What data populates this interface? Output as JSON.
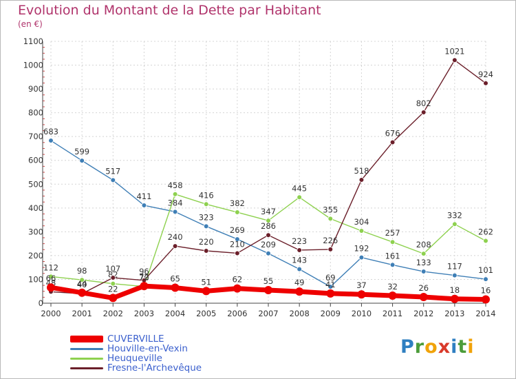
{
  "title": "Evolution du Montant de la Dette par Habitant",
  "unit": "(en €)",
  "logo": {
    "letters": [
      "P",
      "r",
      "o",
      "x",
      "i",
      "t",
      "i"
    ],
    "colors": [
      "#2f7fc1",
      "#4b9c3a",
      "#f0a30a",
      "#d93a2b",
      "#2f7fc1",
      "#4b9c3a",
      "#f0a30a"
    ]
  },
  "chart_data": {
    "type": "line",
    "x": [
      "2000",
      "2001",
      "2002",
      "2003",
      "2004",
      "2005",
      "2006",
      "2007",
      "2008",
      "2009",
      "2010",
      "2011",
      "2012",
      "2013",
      "2014"
    ],
    "ylim": [
      0,
      1100
    ],
    "yticks": [
      "0",
      "100",
      "200",
      "300",
      "400",
      "500",
      "600",
      "700",
      "800",
      "900",
      "1000",
      "1100"
    ],
    "grid": true,
    "legend_position": "bottom",
    "series": [
      {
        "name": "Houville-en-Vexin",
        "color": "#3f7fb6",
        "width": 1.4,
        "values": [
          683,
          599,
          517,
          411,
          384,
          323,
          269,
          209,
          143,
          69,
          192,
          161,
          133,
          117,
          101
        ],
        "labels": [
          "683",
          "599",
          "517",
          "411",
          "384",
          "323",
          "269",
          "209",
          "143",
          "69",
          "192",
          "161",
          "133",
          "117",
          "101"
        ]
      },
      {
        "name": "Heuqueville",
        "color": "#8ed14f",
        "width": 1.4,
        "values": [
          112,
          98,
          82,
          70,
          458,
          416,
          382,
          347,
          445,
          355,
          304,
          257,
          208,
          332,
          262
        ],
        "labels": [
          "112",
          "98",
          "82",
          "70",
          "458",
          "416",
          "382",
          "347",
          "445",
          "355",
          "304",
          "257",
          "208",
          "332",
          "262"
        ]
      },
      {
        "name": "Fresne-l'Archevêque",
        "color": "#6b1f2a",
        "width": 1.4,
        "values": [
          48,
          40,
          107,
          96,
          240,
          220,
          210,
          286,
          223,
          226,
          518,
          676,
          802,
          1021,
          924
        ],
        "labels": [
          "48",
          "40",
          "107",
          "96",
          "240",
          "220",
          "210",
          "286",
          "223",
          "226",
          "518",
          "676",
          "802",
          "1021",
          "924"
        ]
      },
      {
        "name": "CUVERVILLE",
        "color": "#ee0000",
        "width": 7,
        "values": [
          66,
          44,
          22,
          72,
          65,
          51,
          62,
          55,
          49,
          41,
          37,
          32,
          26,
          18,
          16
        ],
        "labels": [
          "66",
          "44",
          "22",
          "72",
          "65",
          "51",
          "62",
          "55",
          "49",
          "41",
          "37",
          "32",
          "26",
          "18",
          "16"
        ]
      }
    ],
    "legend": [
      {
        "name": "CUVERVILLE",
        "color": "#ee0000",
        "thick": 10
      },
      {
        "name": "Houville-en-Vexin",
        "color": "#3f7fb6",
        "thick": 3
      },
      {
        "name": "Heuqueville",
        "color": "#8ed14f",
        "thick": 3
      },
      {
        "name": "Fresne-l'Archevêque",
        "color": "#6b1f2a",
        "thick": 3
      }
    ]
  }
}
